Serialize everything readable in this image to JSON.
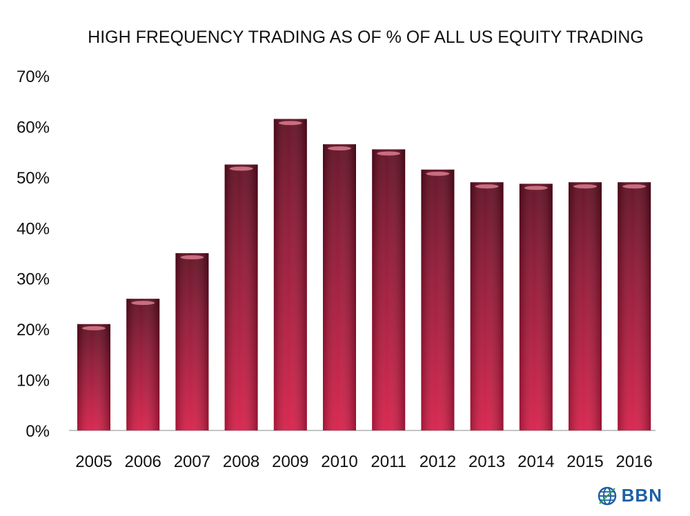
{
  "chart_data": {
    "type": "bar",
    "title": "HIGH FREQUENCY TRADING AS OF % OF ALL US EQUITY TRADING",
    "xlabel": "",
    "ylabel": "",
    "categories": [
      "2005",
      "2006",
      "2007",
      "2008",
      "2009",
      "2010",
      "2011",
      "2012",
      "2013",
      "2014",
      "2015",
      "2016"
    ],
    "values": [
      21,
      26,
      35,
      52.5,
      61.5,
      56.5,
      55.5,
      51.5,
      49,
      48.7,
      49,
      49
    ],
    "ylim": [
      0,
      70
    ],
    "yticks": [
      0,
      10,
      20,
      30,
      40,
      50,
      60,
      70
    ],
    "ytick_labels": [
      "0%",
      "10%",
      "20%",
      "30%",
      "40%",
      "50%",
      "60%",
      "70%"
    ],
    "grid": false,
    "bar_color": "#b3173a",
    "legend": "none"
  },
  "logo": {
    "text": "BBN",
    "icon": "globe-icon",
    "color": "#1f5fa6"
  }
}
